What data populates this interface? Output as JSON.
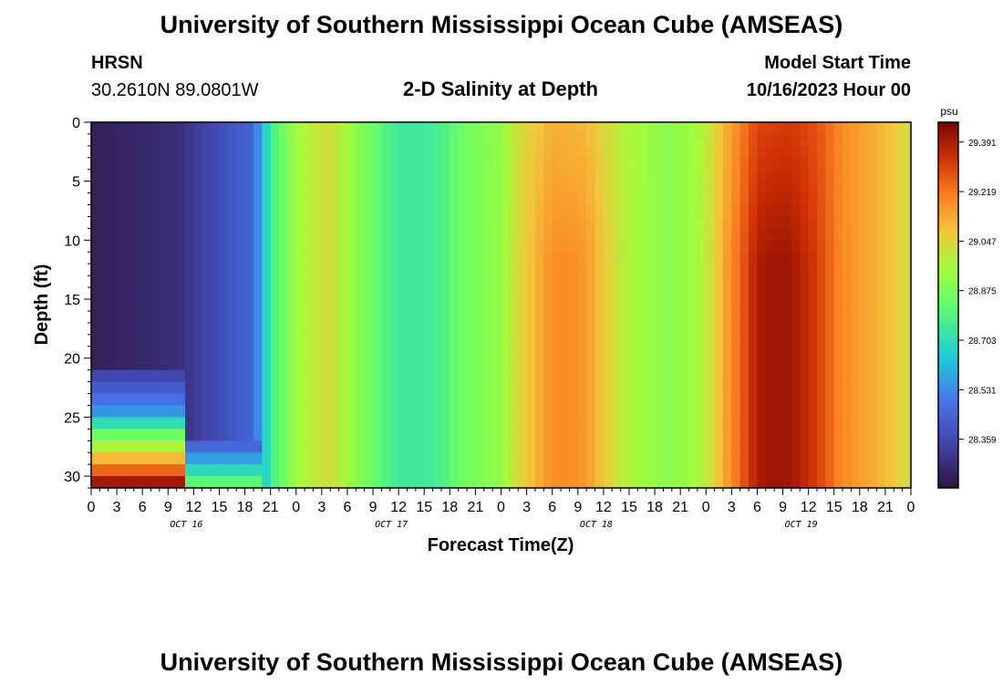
{
  "header": {
    "title": "University of Southern Mississippi Ocean Cube (AMSEAS)",
    "station": "HRSN",
    "location": "30.2610N  89.0801W",
    "plot_title": "2-D Salinity at Depth",
    "start_label": "Model Start Time",
    "start_value": "10/16/2023 Hour 00"
  },
  "footer": {
    "title": "University of Southern Mississippi Ocean Cube (AMSEAS)"
  },
  "chart_data": {
    "type": "heatmap",
    "xlabel": "Forecast Time(Z)",
    "ylabel": "Depth (ft)",
    "xlim": [
      0,
      96
    ],
    "ylim": [
      0,
      31
    ],
    "y_inverted": true,
    "x_tick_labels": [
      "0",
      "3",
      "6",
      "9",
      "12",
      "15",
      "18",
      "21",
      "0",
      "3",
      "6",
      "9",
      "12",
      "15",
      "18",
      "21",
      "0",
      "3",
      "6",
      "9",
      "12",
      "15",
      "18",
      "21",
      "0",
      "3",
      "6",
      "9",
      "12",
      "15",
      "18",
      "21",
      "0"
    ],
    "y_ticks": [
      0,
      5,
      10,
      15,
      20,
      25,
      30
    ],
    "day_labels": [
      "OCT 16",
      "OCT 17",
      "OCT 18",
      "OCT 19"
    ],
    "colorbar": {
      "unit": "psu",
      "ticks": [
        "29.391",
        "29.219",
        "29.047",
        "28.875",
        "28.703",
        "28.531",
        "28.359"
      ],
      "min": 28.19,
      "max": 29.46
    },
    "surface_salinity": [
      [
        0,
        28.23
      ],
      [
        10,
        28.27
      ],
      [
        19,
        28.45
      ],
      [
        21,
        28.75
      ],
      [
        24,
        28.95
      ],
      [
        28,
        29.03
      ],
      [
        32,
        28.87
      ],
      [
        36,
        28.74
      ],
      [
        40,
        28.75
      ],
      [
        44,
        28.86
      ],
      [
        48,
        28.92
      ],
      [
        50,
        29.02
      ],
      [
        54,
        29.12
      ],
      [
        58,
        29.1
      ],
      [
        62,
        28.98
      ],
      [
        64,
        28.95
      ],
      [
        68,
        28.9
      ],
      [
        72,
        28.98
      ],
      [
        74,
        29.1
      ],
      [
        78,
        29.3
      ],
      [
        82,
        29.32
      ],
      [
        85,
        29.28
      ],
      [
        88,
        29.18
      ],
      [
        92,
        29.12
      ],
      [
        96,
        29.02
      ]
    ],
    "bottom_layer": {
      "depth_ft": [
        21,
        22,
        23,
        24,
        25,
        26,
        27,
        28,
        29,
        30,
        31
      ],
      "salinity": [
        28.3,
        28.35,
        28.42,
        28.48,
        28.55,
        28.7,
        28.85,
        28.97,
        29.1,
        29.25,
        29.4
      ]
    }
  }
}
